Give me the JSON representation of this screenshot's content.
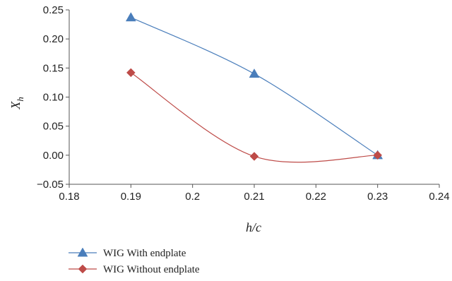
{
  "chart_data": {
    "type": "line",
    "x": [
      0.19,
      0.21,
      0.23
    ],
    "xlabel": "h/c",
    "ylabel": "X_h",
    "ylabel_main": "X",
    "ylabel_sub": "h",
    "xlim": [
      0.18,
      0.24
    ],
    "ylim": [
      -0.05,
      0.25
    ],
    "xticks": [
      0.18,
      0.19,
      0.2,
      0.21,
      0.22,
      0.23,
      0.24
    ],
    "xtick_labels": [
      "0.18",
      "0.19",
      "0.2",
      "0.21",
      "0.22",
      "0.23",
      "0.24"
    ],
    "yticks": [
      -0.05,
      0.0,
      0.05,
      0.1,
      0.15,
      0.2,
      0.25
    ],
    "ytick_labels": [
      "−0.05",
      "0.00",
      "0.05",
      "0.10",
      "0.15",
      "0.20",
      "0.25"
    ],
    "grid": false,
    "legend_position": "bottom",
    "series": [
      {
        "name": "WIG With endplate",
        "values": [
          0.237,
          0.14,
          0.0
        ],
        "color": "#4a7ebb",
        "marker": "triangle"
      },
      {
        "name": "WIG Without endplate",
        "values": [
          0.142,
          -0.002,
          0.0
        ],
        "color": "#be4b48",
        "marker": "diamond"
      }
    ]
  }
}
